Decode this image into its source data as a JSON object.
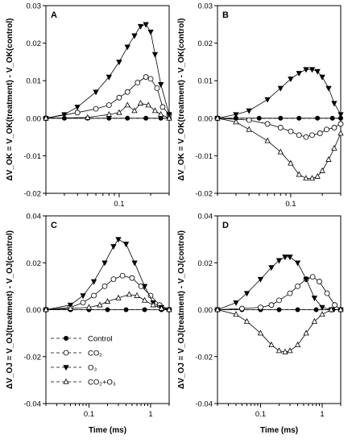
{
  "chart_data": [
    {
      "type": "scatter",
      "panel_label": "A",
      "ylabel": "ΔV_OK = V_OK(treatment) - V_OK(control)",
      "xlabel": "",
      "x_scale": "log",
      "xlim": [
        0.02,
        0.3
      ],
      "ylim": [
        -0.02,
        0.03
      ],
      "y_ticks": [
        "0.03",
        "0.02",
        "0.01",
        "0.00",
        "-0.01",
        "-0.02"
      ],
      "x_ticks": [
        "0.1"
      ],
      "series": [
        {
          "key": "control",
          "x": [
            0.02,
            0.03,
            0.05,
            0.08,
            0.12,
            0.18,
            0.25,
            0.3
          ],
          "y": [
            0,
            0,
            0,
            0,
            0,
            0,
            0,
            0
          ]
        },
        {
          "key": "co2",
          "x": [
            0.02,
            0.04,
            0.06,
            0.08,
            0.1,
            0.12,
            0.15,
            0.18,
            0.2,
            0.23,
            0.26,
            0.3
          ],
          "y": [
            0,
            0.0015,
            0.0025,
            0.0035,
            0.0055,
            0.007,
            0.0095,
            0.011,
            0.0105,
            0.008,
            0.003,
            0.001
          ]
        },
        {
          "key": "o3",
          "x": [
            0.02,
            0.03,
            0.04,
            0.06,
            0.08,
            0.1,
            0.12,
            0.14,
            0.16,
            0.18,
            0.2,
            0.22,
            0.25,
            0.3
          ],
          "y": [
            0,
            0.001,
            0.003,
            0.007,
            0.011,
            0.015,
            0.019,
            0.022,
            0.0245,
            0.025,
            0.023,
            0.017,
            0.009,
            0.001
          ]
        },
        {
          "key": "co2o3",
          "x": [
            0.02,
            0.05,
            0.08,
            0.1,
            0.12,
            0.14,
            0.16,
            0.19,
            0.22,
            0.25,
            0.3
          ],
          "y": [
            0,
            0.0002,
            0.001,
            0.0015,
            0.0035,
            0.002,
            0.004,
            0.0035,
            0.002,
            0.001,
            0
          ]
        }
      ]
    },
    {
      "type": "scatter",
      "panel_label": "B",
      "ylabel": "ΔV_OK = V_OK(treatment) - V_OK(control)",
      "xlabel": "",
      "x_scale": "log",
      "xlim": [
        0.02,
        0.3
      ],
      "ylim": [
        -0.02,
        0.03
      ],
      "y_ticks": [
        "0.03",
        "0.02",
        "0.01",
        "0.00",
        "-0.01",
        "-0.02"
      ],
      "x_ticks": [
        "0.1"
      ],
      "series": [
        {
          "key": "control",
          "x": [
            0.02,
            0.03,
            0.05,
            0.08,
            0.12,
            0.18,
            0.25,
            0.3
          ],
          "y": [
            0,
            0,
            0,
            0,
            0,
            0,
            0,
            0
          ]
        },
        {
          "key": "co2",
          "x": [
            0.02,
            0.04,
            0.06,
            0.08,
            0.1,
            0.12,
            0.14,
            0.16,
            0.19,
            0.22,
            0.26,
            0.3
          ],
          "y": [
            0,
            -0.0005,
            -0.0015,
            -0.0025,
            -0.0035,
            -0.0045,
            -0.005,
            -0.0045,
            -0.004,
            -0.003,
            -0.0025,
            -0.0015
          ]
        },
        {
          "key": "o3",
          "x": [
            0.02,
            0.03,
            0.04,
            0.06,
            0.08,
            0.1,
            0.12,
            0.14,
            0.16,
            0.18,
            0.2,
            0.23,
            0.26,
            0.3
          ],
          "y": [
            0,
            0.001,
            0.002,
            0.005,
            0.008,
            0.0105,
            0.012,
            0.013,
            0.013,
            0.0125,
            0.011,
            0.008,
            0.004,
            0.001
          ]
        },
        {
          "key": "co2o3",
          "x": [
            0.02,
            0.03,
            0.04,
            0.06,
            0.08,
            0.1,
            0.12,
            0.14,
            0.16,
            0.18,
            0.2,
            0.23,
            0.26,
            0.3
          ],
          "y": [
            0,
            -0.001,
            -0.003,
            -0.006,
            -0.009,
            -0.012,
            -0.015,
            -0.016,
            -0.016,
            -0.0155,
            -0.014,
            -0.011,
            -0.008,
            -0.004
          ]
        }
      ]
    },
    {
      "type": "scatter",
      "panel_label": "C",
      "ylabel": "ΔV_OJ = V_OJ(treatment) - V_OJ(control)",
      "xlabel": "Time (ms)",
      "x_scale": "log",
      "xlim": [
        0.02,
        2
      ],
      "ylim": [
        -0.04,
        0.04
      ],
      "y_ticks": [
        "0.04",
        "0.02",
        "0.00",
        "-0.02",
        "-0.04"
      ],
      "x_ticks": [
        "0.1",
        "1"
      ],
      "series": [
        {
          "key": "control",
          "x": [
            0.02,
            0.05,
            0.1,
            0.2,
            0.4,
            0.8,
            1.5,
            2
          ],
          "y": [
            0,
            0,
            0,
            0,
            0,
            0,
            0,
            0
          ]
        },
        {
          "key": "co2",
          "x": [
            0.02,
            0.05,
            0.08,
            0.12,
            0.18,
            0.25,
            0.35,
            0.5,
            0.7,
            1,
            1.4,
            2
          ],
          "y": [
            0,
            0.001,
            0.003,
            0.006,
            0.01,
            0.013,
            0.0145,
            0.0135,
            0.01,
            0.006,
            0.002,
            0
          ]
        },
        {
          "key": "o3",
          "x": [
            0.02,
            0.05,
            0.08,
            0.12,
            0.18,
            0.25,
            0.3,
            0.4,
            0.55,
            0.8,
            1.1,
            1.5,
            2
          ],
          "y": [
            0,
            0.002,
            0.006,
            0.012,
            0.02,
            0.027,
            0.03,
            0.028,
            0.02,
            0.01,
            0.003,
            0.001,
            0
          ]
        },
        {
          "key": "co2o3",
          "x": [
            0.02,
            0.05,
            0.1,
            0.15,
            0.2,
            0.3,
            0.45,
            0.6,
            0.8,
            1.1,
            1.5,
            2
          ],
          "y": [
            0,
            0.0005,
            0.001,
            0.002,
            0.0035,
            0.005,
            0.0065,
            0.006,
            0.004,
            0.002,
            0.0005,
            0
          ]
        }
      ],
      "legend": {
        "placement": "bottom-left",
        "entries": [
          {
            "key": "control",
            "label": "Control"
          },
          {
            "key": "co2",
            "label": "CO₂"
          },
          {
            "key": "o3",
            "label": "O₃"
          },
          {
            "key": "co2o3",
            "label": "CO₂+O₃"
          }
        ]
      }
    },
    {
      "type": "scatter",
      "panel_label": "D",
      "ylabel": "ΔV_OJ = V_OJ(treatment) - V_OJ(control)",
      "xlabel": "Time (ms)",
      "x_scale": "log",
      "xlim": [
        0.02,
        2
      ],
      "ylim": [
        -0.04,
        0.04
      ],
      "y_ticks": [
        "0.04",
        "0.02",
        "0.00",
        "-0.02",
        "-0.04"
      ],
      "x_ticks": [
        "0.1",
        "1"
      ],
      "series": [
        {
          "key": "control",
          "x": [
            0.02,
            0.05,
            0.1,
            0.2,
            0.4,
            0.8,
            1.5,
            2
          ],
          "y": [
            0,
            0,
            0,
            0,
            0,
            0,
            0,
            0
          ]
        },
        {
          "key": "co2",
          "x": [
            0.02,
            0.05,
            0.1,
            0.15,
            0.2,
            0.3,
            0.4,
            0.55,
            0.7,
            0.9,
            1.2,
            1.6,
            2
          ],
          "y": [
            0,
            0.0005,
            0.001,
            0.002,
            0.004,
            0.007,
            0.01,
            0.013,
            0.014,
            0.012,
            0.007,
            0.002,
            0
          ]
        },
        {
          "key": "o3",
          "x": [
            0.02,
            0.04,
            0.06,
            0.1,
            0.15,
            0.2,
            0.25,
            0.3,
            0.4,
            0.55,
            0.75,
            1,
            1.4,
            2
          ],
          "y": [
            0,
            0.003,
            0.007,
            0.013,
            0.018,
            0.021,
            0.0225,
            0.0225,
            0.02,
            0.013,
            0.005,
            0.001,
            0,
            0
          ]
        },
        {
          "key": "co2o3",
          "x": [
            0.02,
            0.04,
            0.06,
            0.1,
            0.15,
            0.2,
            0.25,
            0.3,
            0.4,
            0.55,
            0.75,
            1,
            1.4,
            2
          ],
          "y": [
            0,
            -0.002,
            -0.005,
            -0.01,
            -0.015,
            -0.0175,
            -0.018,
            -0.0175,
            -0.015,
            -0.01,
            -0.005,
            -0.002,
            0,
            0
          ]
        }
      ]
    }
  ]
}
